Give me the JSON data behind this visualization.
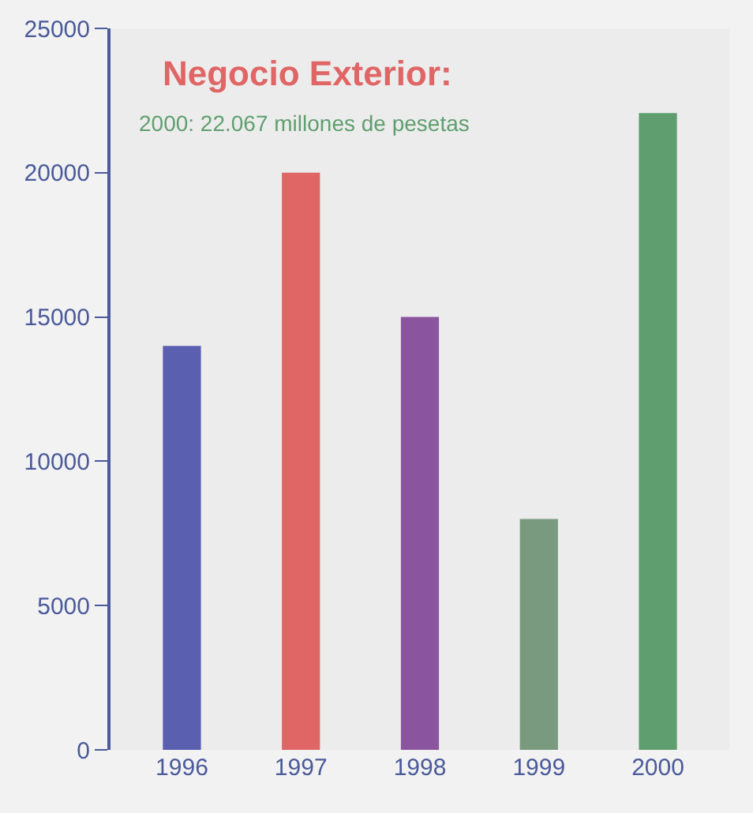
{
  "chart_data": {
    "type": "bar",
    "title": "Negocio Exterior:",
    "subtitle": "2000: 22.067 millones de pesetas",
    "categories": [
      "1996",
      "1997",
      "1998",
      "1999",
      "2000"
    ],
    "values": [
      14000,
      20000,
      15000,
      8000,
      22067
    ],
    "colors": [
      "#5a5fb0",
      "#e06666",
      "#8a559e",
      "#7a9a80",
      "#5f9f6f"
    ],
    "ylim": [
      0,
      25000
    ],
    "yticks": [
      0,
      5000,
      10000,
      15000,
      20000,
      25000
    ],
    "grid": false,
    "legend": false
  }
}
